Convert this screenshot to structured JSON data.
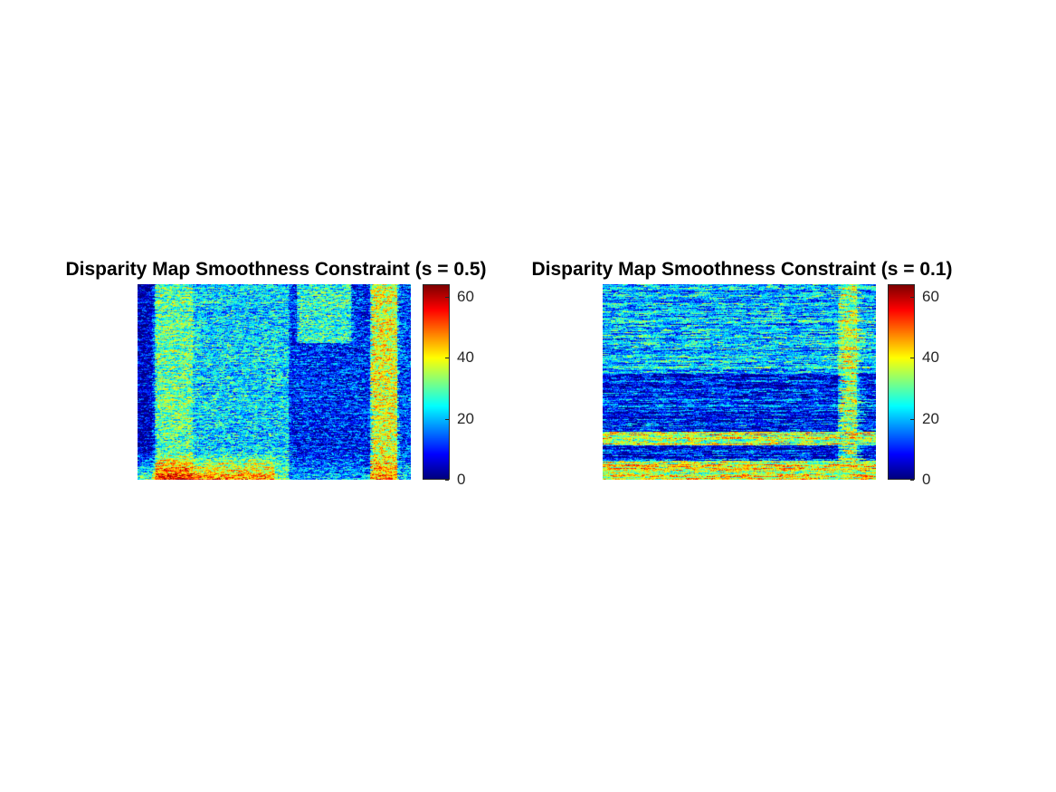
{
  "chart_data": [
    {
      "type": "heatmap",
      "title": "Disparity Map Smoothness Constraint (s = 0.5)",
      "colormap": "jet",
      "clim": [
        0,
        64
      ],
      "colorbar_ticks": [
        "0",
        "20",
        "40",
        "60"
      ],
      "colorbar_tick_values": [
        0,
        20,
        40,
        60
      ],
      "axes_visible": false
    },
    {
      "type": "heatmap",
      "title": "Disparity Map Smoothness Constraint (s = 0.1)",
      "colormap": "jet",
      "clim": [
        0,
        64
      ],
      "colorbar_ticks": [
        "0",
        "20",
        "40",
        "60"
      ],
      "colorbar_tick_values": [
        0,
        20,
        40,
        60
      ],
      "axes_visible": false
    }
  ]
}
